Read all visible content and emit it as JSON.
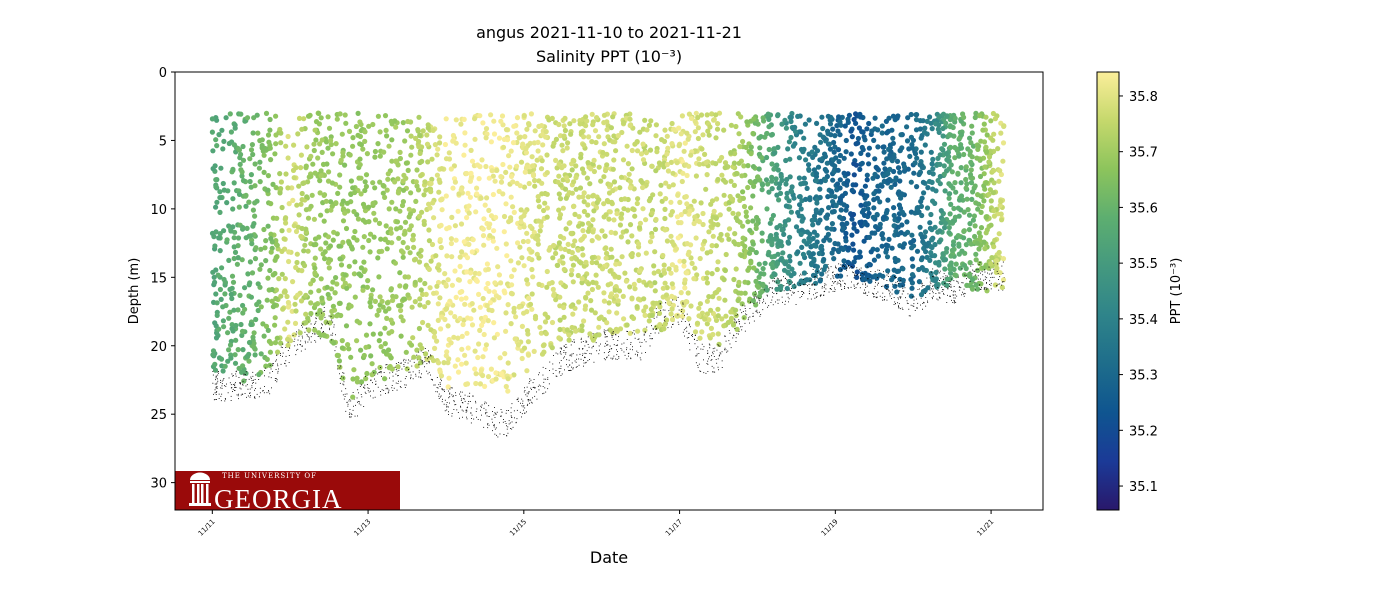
{
  "chart_data": {
    "type": "scatter",
    "title": "angus 2021-11-10 to 2021-11-21",
    "subtitle": "Salinity PPT (10⁻³)",
    "xlabel": "Date",
    "ylabel": "Depth (m)",
    "xlim": [
      "2021-11-10T12:30",
      "2021-11-21T16:00"
    ],
    "ylim": [
      32,
      0
    ],
    "y_inverted": true,
    "yticks": [
      0,
      5,
      10,
      15,
      20,
      25,
      30
    ],
    "xticks": [
      "2021-11-11",
      "2021-11-13",
      "2021-11-15",
      "2021-11-17",
      "2021-11-19",
      "2021-11-21"
    ],
    "xtick_labels": [
      "11/11",
      "11/13",
      "11/15",
      "11/17",
      "11/19",
      "11/21"
    ],
    "grid": false,
    "colorbar": {
      "label": "PPT (10⁻³)",
      "range": [
        35.057,
        35.843
      ],
      "ticks": [
        35.1,
        35.2,
        35.3,
        35.4,
        35.5,
        35.6,
        35.7,
        35.8
      ],
      "tick_labels": [
        "35.1",
        "35.2",
        "35.3",
        "35.4",
        "35.5",
        "35.6",
        "35.7",
        "35.8"
      ],
      "colormap": "haline",
      "colors": [
        "#29186b",
        "#1b3a97",
        "#0f5590",
        "#1e6d8b",
        "#2f848a",
        "#44997f",
        "#5dae70",
        "#8cc45c",
        "#c5d86c",
        "#fbee9a"
      ]
    },
    "profile_summary": {
      "x": [
        "2021-11-11T00:00",
        "2021-11-11T12:00",
        "2021-11-11T18:00",
        "2021-11-12T00:00",
        "2021-11-12T06:00",
        "2021-11-12T12:00",
        "2021-11-12T18:00",
        "2021-11-13T00:00",
        "2021-11-13T12:00",
        "2021-11-13T18:00",
        "2021-11-14T00:00",
        "2021-11-14T12:00",
        "2021-11-14T18:00",
        "2021-11-15T00:00",
        "2021-11-15T12:00",
        "2021-11-16T00:00",
        "2021-11-16T12:00",
        "2021-11-16T18:00",
        "2021-11-17T00:00",
        "2021-11-17T06:00",
        "2021-11-17T12:00",
        "2021-11-17T18:00",
        "2021-11-18T00:00",
        "2021-11-18T06:00",
        "2021-11-18T12:00",
        "2021-11-18T18:00",
        "2021-11-19T00:00",
        "2021-11-19T06:00",
        "2021-11-19T12:00",
        "2021-11-19T18:00",
        "2021-11-20T00:00",
        "2021-11-20T06:00",
        "2021-11-20T12:00",
        "2021-11-20T18:00",
        "2021-11-21T00:00",
        "2021-11-21T04:00"
      ],
      "salinity": [
        35.55,
        35.6,
        35.65,
        35.8,
        35.7,
        35.68,
        35.68,
        35.68,
        35.7,
        35.75,
        35.82,
        35.83,
        35.82,
        35.8,
        35.76,
        35.77,
        35.77,
        35.75,
        35.82,
        35.78,
        35.76,
        35.72,
        35.62,
        35.5,
        35.4,
        35.35,
        35.3,
        35.22,
        35.28,
        35.3,
        35.3,
        35.4,
        35.58,
        35.6,
        35.72,
        35.8
      ],
      "min_depth": 3.5,
      "max_depth": [
        22,
        23,
        22,
        20,
        19,
        19.5,
        24,
        23,
        22,
        21,
        23,
        23,
        24,
        22,
        20,
        19.5,
        19,
        19,
        18,
        20,
        20,
        19,
        17,
        16,
        16,
        15.5,
        15,
        15,
        15.5,
        16,
        17,
        16,
        16,
        16,
        16,
        16
      ],
      "bottom_depth": [
        24,
        24,
        23.5,
        21,
        20,
        19,
        26,
        24,
        23,
        22,
        25,
        26,
        27,
        25,
        22,
        21,
        21,
        19,
        18.5,
        22,
        22,
        19.5,
        18,
        17,
        17,
        16.5,
        16,
        16,
        16.5,
        17,
        18,
        16.5,
        17,
        16,
        16,
        16
      ]
    }
  },
  "logo": {
    "line1": "THE UNIVERSITY OF",
    "line2": "GEORGIA",
    "color": "#9a0a0a"
  }
}
